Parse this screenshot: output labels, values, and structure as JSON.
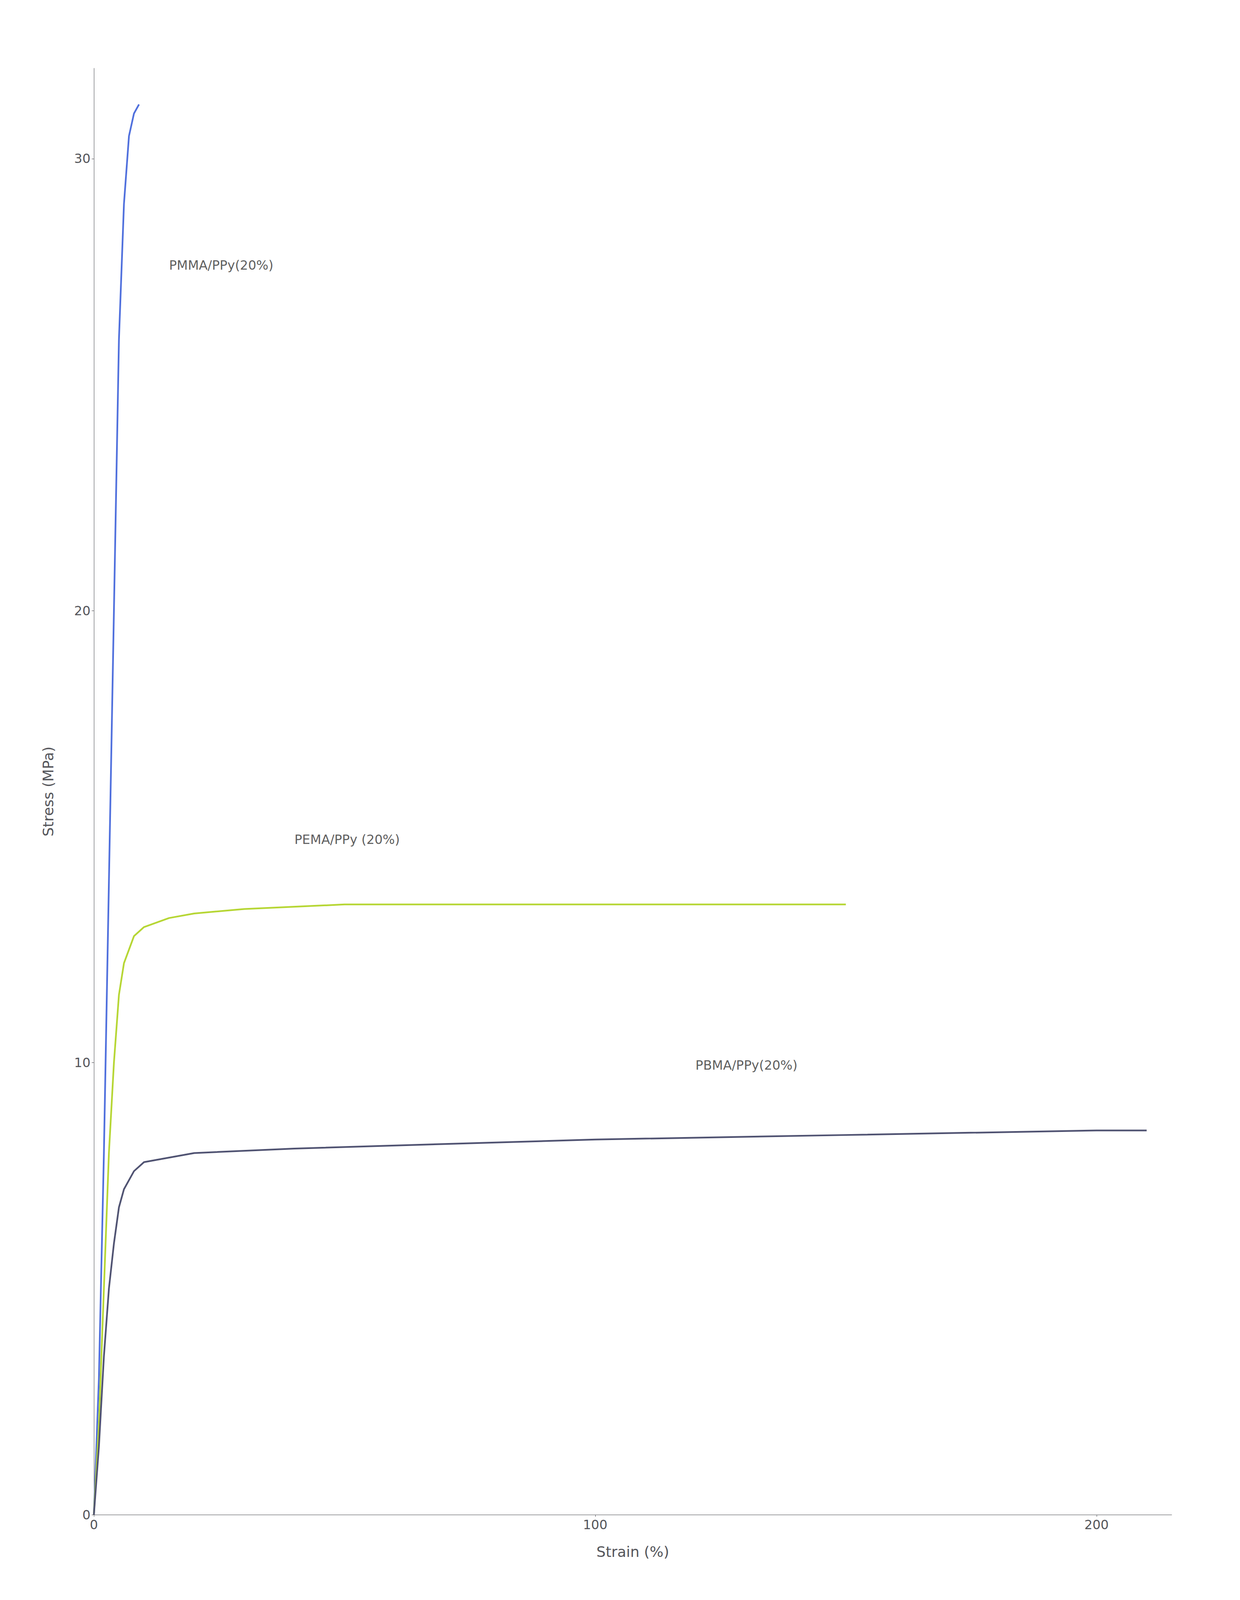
{
  "chart_data": {
    "type": "line",
    "xlabel": "Strain (%)",
    "ylabel": "Stress (MPa)",
    "xlim": [
      0,
      215
    ],
    "ylim": [
      0,
      32
    ],
    "xticks": [
      0,
      100,
      200
    ],
    "yticks": [
      0,
      10,
      20,
      30
    ],
    "grid": false,
    "series": [
      {
        "name": "PMMA/PPy(20%)",
        "x": [
          0,
          1,
          2,
          3,
          4,
          5,
          6,
          7,
          8,
          9
        ],
        "values": [
          0,
          3,
          8,
          14,
          20,
          26,
          29,
          30.5,
          31,
          31.2
        ]
      },
      {
        "name": "PEMA/PPy (20%)",
        "x": [
          0,
          1,
          2,
          3,
          4,
          5,
          6,
          8,
          10,
          15,
          20,
          30,
          50,
          70,
          100,
          130,
          150
        ],
        "values": [
          0,
          2,
          5,
          8,
          10,
          11.5,
          12.2,
          12.8,
          13.0,
          13.2,
          13.3,
          13.4,
          13.5,
          13.5,
          13.5,
          13.5,
          13.5
        ]
      },
      {
        "name": "PBMA/PPy(20%)",
        "x": [
          0,
          1,
          2,
          3,
          4,
          5,
          6,
          8,
          10,
          20,
          40,
          70,
          100,
          150,
          200,
          210
        ],
        "values": [
          0,
          1.5,
          3.5,
          5.0,
          6.0,
          6.8,
          7.2,
          7.6,
          7.8,
          8.0,
          8.1,
          8.2,
          8.3,
          8.4,
          8.5,
          8.5
        ]
      }
    ],
    "annotations": [
      {
        "text": "PMMA/PPy(20%)",
        "x": 15,
        "y": 27.5
      },
      {
        "text": "PEMA/PPy (20%)",
        "x": 40,
        "y": 14.8
      },
      {
        "text": "PBMA/PPy(20%)",
        "x": 120,
        "y": 9.8
      }
    ]
  }
}
